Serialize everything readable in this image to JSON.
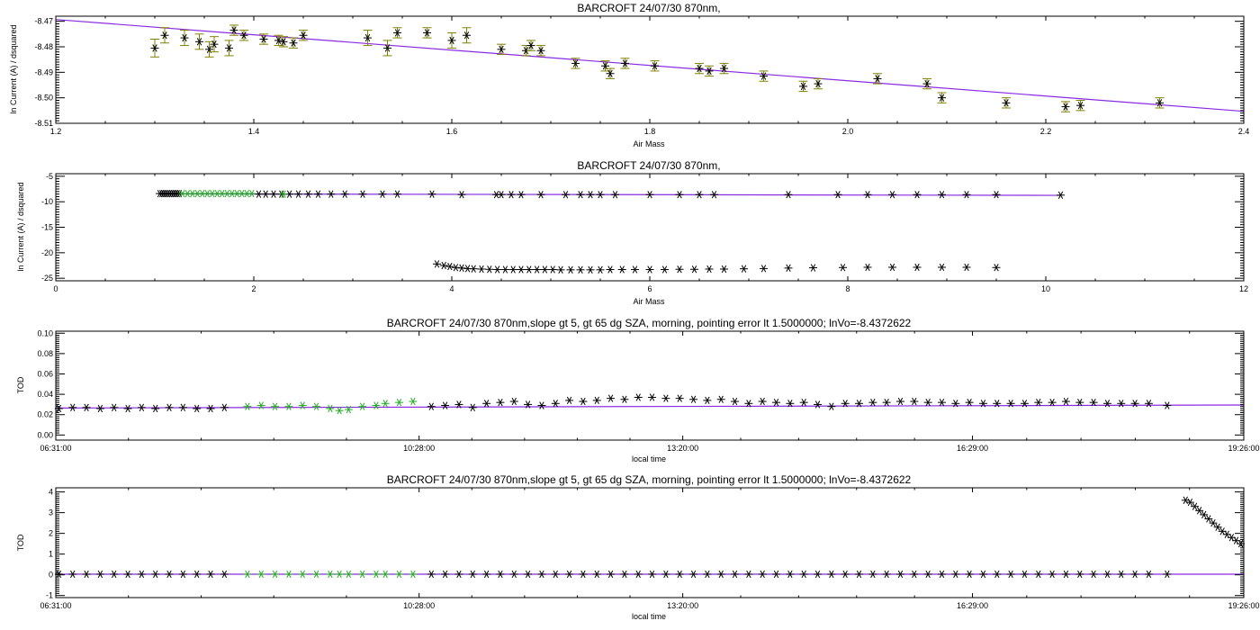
{
  "chart_data": [
    {
      "type": "scatter",
      "title": "BARCROFT 24/07/30 870nm,",
      "xlabel": "Air Mass",
      "ylabel": "ln Current (A) / dsquared",
      "xlim": [
        1.2,
        2.4
      ],
      "ylim": [
        -8.51,
        -8.468
      ],
      "xticks": [
        1.2,
        1.4,
        1.6,
        1.8,
        2.0,
        2.2,
        2.4
      ],
      "xtick_labels": [
        "1.2",
        "1.4",
        "1.6",
        "1.8",
        "2.0",
        "2.2",
        "2.4"
      ],
      "yticks": [
        -8.47,
        -8.48,
        -8.49,
        -8.5,
        -8.51
      ],
      "ytick_labels": [
        "-8.47",
        "-8.48",
        "-8.49",
        "-8.50",
        "-8.51"
      ],
      "grid": false,
      "colors": {
        "points": "#000000",
        "errorbars": "#808000",
        "fit": "#8a2be2"
      },
      "fit_line": {
        "x": [
          1.2,
          2.4
        ],
        "y": [
          -8.4693,
          -8.5053
        ]
      },
      "series": [
        {
          "x": [
            1.3,
            1.31,
            1.33,
            1.345,
            1.355,
            1.36,
            1.375,
            1.38,
            1.39,
            1.41,
            1.425,
            1.43,
            1.44,
            1.45,
            1.515,
            1.535,
            1.545,
            1.575,
            1.6,
            1.615,
            1.65,
            1.675,
            1.68,
            1.69,
            1.725,
            1.755,
            1.76,
            1.775,
            1.805,
            1.85,
            1.86,
            1.875,
            1.915,
            1.955,
            1.97,
            2.03,
            2.08,
            2.095,
            2.16,
            2.22,
            2.235,
            2.315
          ],
          "y": [
            -8.4805,
            -8.4755,
            -8.4765,
            -8.478,
            -8.481,
            -8.479,
            -8.4805,
            -8.4735,
            -8.4755,
            -8.477,
            -8.4775,
            -8.478,
            -8.4785,
            -8.4755,
            -8.4765,
            -8.4805,
            -8.4745,
            -8.4745,
            -8.4775,
            -8.4755,
            -8.481,
            -8.4815,
            -8.4795,
            -8.4815,
            -8.4865,
            -8.4875,
            -8.4905,
            -8.4865,
            -8.4875,
            -8.4885,
            -8.4895,
            -8.4885,
            -8.4915,
            -8.4955,
            -8.4945,
            -8.4925,
            -8.4945,
            -8.5,
            -8.502,
            -8.5035,
            -8.503,
            -8.502
          ],
          "yerr": [
            0.0035,
            0.003,
            0.003,
            0.003,
            0.003,
            0.003,
            0.003,
            0.002,
            0.002,
            0.002,
            0.002,
            0.002,
            0.002,
            0.002,
            0.003,
            0.003,
            0.002,
            0.002,
            0.003,
            0.003,
            0.002,
            0.002,
            0.002,
            0.002,
            0.002,
            0.002,
            0.002,
            0.002,
            0.002,
            0.002,
            0.002,
            0.002,
            0.002,
            0.002,
            0.002,
            0.002,
            0.002,
            0.002,
            0.002,
            0.002,
            0.002,
            0.002
          ]
        }
      ]
    },
    {
      "type": "scatter",
      "title": "BARCROFT 24/07/30 870nm,",
      "xlabel": "Air Mass",
      "ylabel": "ln Current (A) / dsquared",
      "xlim": [
        0,
        12
      ],
      "ylim": [
        -25.5,
        -4.5
      ],
      "xticks": [
        0,
        2,
        4,
        6,
        8,
        10,
        12
      ],
      "xtick_labels": [
        "0",
        "2",
        "4",
        "6",
        "8",
        "10",
        "12"
      ],
      "yticks": [
        -5,
        -10,
        -15,
        -20,
        -25
      ],
      "ytick_labels": [
        "-5",
        "-10",
        "-15",
        "-20",
        "-25"
      ],
      "grid": false,
      "colors": {
        "morning": "#000000",
        "selected": "#22aa22",
        "fit": "#8a2be2"
      },
      "fit_line": {
        "x": [
          1.05,
          10.15
        ],
        "y": [
          -8.45,
          -8.75
        ]
      },
      "series": [
        {
          "x": [
            1.05,
            1.07,
            1.09,
            1.11,
            1.13,
            1.15,
            1.17,
            1.19,
            1.21,
            1.23,
            1.25,
            2.05,
            2.12,
            2.2,
            2.28,
            2.36,
            2.45,
            2.55,
            2.65,
            2.78,
            2.92,
            3.1,
            3.3,
            3.45,
            3.8,
            4.1,
            4.45,
            4.5,
            4.6,
            4.7,
            4.9,
            5.15,
            5.3,
            5.4,
            5.5,
            5.65,
            6.0,
            6.3,
            6.5,
            6.65,
            7.4,
            7.9,
            8.2,
            8.45,
            8.7,
            8.95,
            9.2,
            9.5,
            10.15
          ],
          "y": [
            -8.4,
            -8.4,
            -8.4,
            -8.4,
            -8.4,
            -8.4,
            -8.4,
            -8.4,
            -8.4,
            -8.4,
            -8.4,
            -8.5,
            -8.5,
            -8.5,
            -8.5,
            -8.5,
            -8.5,
            -8.5,
            -8.5,
            -8.5,
            -8.5,
            -8.5,
            -8.5,
            -8.5,
            -8.5,
            -8.6,
            -8.6,
            -8.6,
            -8.6,
            -8.6,
            -8.6,
            -8.6,
            -8.6,
            -8.6,
            -8.6,
            -8.6,
            -8.6,
            -8.6,
            -8.6,
            -8.6,
            -8.6,
            -8.6,
            -8.6,
            -8.6,
            -8.6,
            -8.6,
            -8.6,
            -8.6,
            -8.7
          ]
        },
        {
          "x": [
            1.28,
            1.33,
            1.38,
            1.43,
            1.48,
            1.53,
            1.58,
            1.63,
            1.68,
            1.73,
            1.78,
            1.83,
            1.88,
            1.93,
            1.98,
            2.3
          ],
          "y": [
            -8.4,
            -8.4,
            -8.4,
            -8.4,
            -8.4,
            -8.4,
            -8.4,
            -8.4,
            -8.4,
            -8.4,
            -8.4,
            -8.4,
            -8.4,
            -8.4,
            -8.4,
            -8.5
          ]
        },
        {
          "x": [
            3.85,
            3.92,
            3.98,
            4.04,
            4.1,
            4.16,
            4.22,
            4.3,
            4.38,
            4.46,
            4.54,
            4.62,
            4.7,
            4.78,
            4.86,
            4.94,
            5.02,
            5.1,
            5.2,
            5.3,
            5.4,
            5.5,
            5.6,
            5.72,
            5.85,
            6.0,
            6.15,
            6.3,
            6.45,
            6.6,
            6.75,
            6.95,
            7.15,
            7.4,
            7.65,
            7.95,
            8.2,
            8.45,
            8.7,
            8.95,
            9.2,
            9.5
          ],
          "y": [
            -22.2,
            -22.5,
            -22.7,
            -22.9,
            -23.0,
            -23.1,
            -23.15,
            -23.2,
            -23.25,
            -23.3,
            -23.3,
            -23.3,
            -23.3,
            -23.3,
            -23.3,
            -23.3,
            -23.3,
            -23.35,
            -23.35,
            -23.35,
            -23.35,
            -23.35,
            -23.3,
            -23.3,
            -23.3,
            -23.3,
            -23.3,
            -23.25,
            -23.25,
            -23.2,
            -23.2,
            -23.15,
            -23.1,
            -23.0,
            -22.95,
            -22.9,
            -22.85,
            -22.85,
            -22.85,
            -22.85,
            -22.85,
            -22.9
          ]
        }
      ]
    },
    {
      "type": "scatter",
      "title": "BARCROFT 24/07/30 870nm,slope gt 5, gt 65 dg SZA, morning, pointing error lt 1.5000000; lnVo=-8.4372622",
      "xlabel": "local time",
      "ylabel": "TOD",
      "xlim": [
        6.5167,
        19.4333
      ],
      "ylim": [
        -0.005,
        0.102
      ],
      "xticks": [
        6.5167,
        10.4667,
        13.3333,
        16.4833,
        19.4333
      ],
      "xtick_labels": [
        "06:31:00",
        "10:28:00",
        "13:20:00",
        "16:29:00",
        "19:26:00"
      ],
      "yticks": [
        0.0,
        0.02,
        0.04,
        0.06,
        0.08,
        0.1
      ],
      "ytick_labels": [
        "0.00",
        "0.02",
        "0.04",
        "0.06",
        "0.08",
        "0.10"
      ],
      "grid": false,
      "colors": {
        "all": "#000000",
        "selected": "#22aa22",
        "reference": "#8a2be2"
      },
      "reference_line": {
        "x": [
          6.5167,
          19.4333
        ],
        "y": [
          0.0265,
          0.0295
        ]
      },
      "series": [
        {
          "x": [
            6.55,
            6.7,
            6.85,
            7.0,
            7.15,
            7.3,
            7.45,
            7.6,
            7.75,
            7.9,
            8.05,
            8.2,
            8.35,
            10.6,
            10.75,
            10.9,
            11.05,
            11.2,
            11.35,
            11.5,
            11.65,
            11.8,
            11.95,
            12.1,
            12.25,
            12.4,
            12.55,
            12.7,
            12.85,
            13.0,
            13.15,
            13.3,
            13.45,
            13.6,
            13.75,
            13.9,
            14.05,
            14.2,
            14.35,
            14.5,
            14.65,
            14.8,
            14.95,
            15.1,
            15.25,
            15.4,
            15.55,
            15.7,
            15.85,
            16.0,
            16.15,
            16.3,
            16.45,
            16.6,
            16.75,
            16.9,
            17.05,
            17.2,
            17.35,
            17.5,
            17.65,
            17.8,
            17.95,
            18.1,
            18.25,
            18.4,
            18.6
          ],
          "y": [
            0.026,
            0.027,
            0.027,
            0.026,
            0.027,
            0.026,
            0.027,
            0.026,
            0.027,
            0.027,
            0.026,
            0.026,
            0.027,
            0.028,
            0.029,
            0.03,
            0.027,
            0.031,
            0.032,
            0.033,
            0.03,
            0.029,
            0.031,
            0.034,
            0.033,
            0.034,
            0.036,
            0.035,
            0.037,
            0.037,
            0.036,
            0.036,
            0.035,
            0.034,
            0.035,
            0.033,
            0.031,
            0.033,
            0.032,
            0.031,
            0.032,
            0.03,
            0.028,
            0.031,
            0.031,
            0.032,
            0.032,
            0.033,
            0.033,
            0.032,
            0.032,
            0.031,
            0.032,
            0.031,
            0.031,
            0.031,
            0.031,
            0.032,
            0.032,
            0.033,
            0.032,
            0.032,
            0.031,
            0.031,
            0.031,
            0.031,
            0.029
          ]
        },
        {
          "x": [
            8.6,
            8.75,
            8.9,
            9.05,
            9.2,
            9.35,
            9.5,
            9.6,
            9.7,
            9.85,
            10.0,
            10.1,
            10.25,
            10.4
          ],
          "y": [
            0.028,
            0.029,
            0.028,
            0.028,
            0.029,
            0.028,
            0.026,
            0.024,
            0.025,
            0.028,
            0.029,
            0.031,
            0.032,
            0.033
          ]
        }
      ]
    },
    {
      "type": "scatter",
      "title": "BARCROFT 24/07/30 870nm,slope gt 5, gt 65 dg SZA, morning, pointing error lt 1.5000000; lnVo=-8.4372622",
      "xlabel": "local time",
      "ylabel": "TOD",
      "xlim": [
        6.5167,
        19.4333
      ],
      "ylim": [
        -1.1,
        4.2
      ],
      "xticks": [
        6.5167,
        10.4667,
        13.3333,
        16.4833,
        19.4333
      ],
      "xtick_labels": [
        "06:31:00",
        "10:28:00",
        "13:20:00",
        "16:29:00",
        "19:26:00"
      ],
      "yticks": [
        -1,
        0,
        1,
        2,
        3,
        4
      ],
      "ytick_labels": [
        "-1",
        "0",
        "1",
        "2",
        "3",
        "4"
      ],
      "grid": false,
      "colors": {
        "all": "#000000",
        "selected": "#22aa22",
        "reference": "#8a2be2"
      },
      "reference_line": {
        "x": [
          6.5167,
          19.4333
        ],
        "y": [
          0.03,
          0.03
        ]
      },
      "series": [
        {
          "x": [
            6.55,
            6.7,
            6.85,
            7.0,
            7.15,
            7.3,
            7.45,
            7.6,
            7.75,
            7.9,
            8.05,
            8.2,
            8.35,
            10.6,
            10.75,
            10.9,
            11.05,
            11.2,
            11.35,
            11.5,
            11.65,
            11.8,
            11.95,
            12.1,
            12.25,
            12.4,
            12.55,
            12.7,
            12.85,
            13.0,
            13.15,
            13.3,
            13.45,
            13.6,
            13.75,
            13.9,
            14.05,
            14.2,
            14.35,
            14.5,
            14.65,
            14.8,
            14.95,
            15.1,
            15.25,
            15.4,
            15.55,
            15.7,
            15.85,
            16.0,
            16.15,
            16.3,
            16.45,
            16.6,
            16.75,
            16.9,
            17.05,
            17.2,
            17.35,
            17.5,
            17.65,
            17.8,
            17.95,
            18.1,
            18.25,
            18.4,
            18.6
          ],
          "y": [
            0.03,
            0.03,
            0.03,
            0.03,
            0.03,
            0.03,
            0.03,
            0.03,
            0.03,
            0.03,
            0.03,
            0.03,
            0.03,
            0.03,
            0.03,
            0.03,
            0.03,
            0.03,
            0.03,
            0.03,
            0.03,
            0.03,
            0.03,
            0.03,
            0.03,
            0.03,
            0.03,
            0.03,
            0.03,
            0.03,
            0.03,
            0.03,
            0.03,
            0.03,
            0.03,
            0.03,
            0.03,
            0.03,
            0.03,
            0.03,
            0.03,
            0.03,
            0.03,
            0.03,
            0.03,
            0.03,
            0.03,
            0.03,
            0.03,
            0.03,
            0.03,
            0.03,
            0.03,
            0.03,
            0.03,
            0.03,
            0.03,
            0.03,
            0.03,
            0.03,
            0.03,
            0.03,
            0.03,
            0.03,
            0.03,
            0.03,
            0.03
          ]
        },
        {
          "x": [
            8.6,
            8.75,
            8.9,
            9.05,
            9.2,
            9.35,
            9.5,
            9.6,
            9.7,
            9.85,
            10.0,
            10.1,
            10.25,
            10.4
          ],
          "y": [
            0.03,
            0.03,
            0.03,
            0.03,
            0.03,
            0.03,
            0.03,
            0.03,
            0.03,
            0.03,
            0.03,
            0.03,
            0.03,
            0.03
          ]
        },
        {
          "x": [
            18.8,
            18.85,
            18.9,
            18.95,
            19.0,
            19.05,
            19.1,
            19.15,
            19.2,
            19.25,
            19.3,
            19.35,
            19.4
          ],
          "y": [
            3.6,
            3.5,
            3.3,
            3.1,
            2.9,
            2.7,
            2.5,
            2.3,
            2.1,
            1.95,
            1.8,
            1.65,
            1.5
          ]
        }
      ]
    }
  ]
}
